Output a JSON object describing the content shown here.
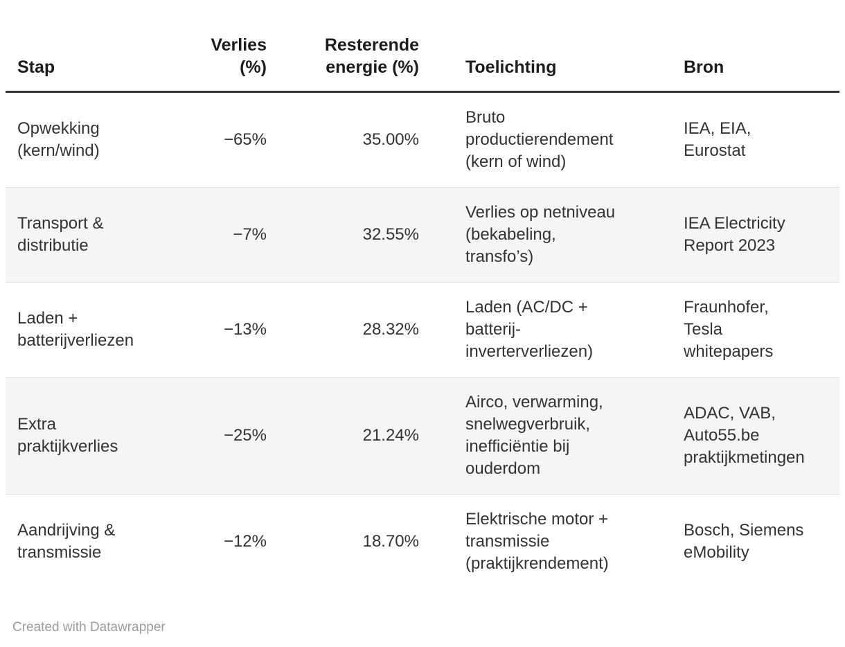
{
  "chart_data": {
    "type": "table",
    "columns": [
      "Stap",
      "Verlies\n(%)",
      "Resterende\nenergie (%)",
      "Toelichting",
      "Bron"
    ],
    "rows": [
      {
        "stap": "Opwekking\n(kern/wind)",
        "verlies": "−65%",
        "resterende": "35.00%",
        "toelichting": "Bruto\nproductierendement\n(kern of wind)",
        "bron": "IEA, EIA,\nEurostat"
      },
      {
        "stap": "Transport &\ndistributie",
        "verlies": "−7%",
        "resterende": "32.55%",
        "toelichting": "Verlies op netniveau\n(bekabeling,\ntransfo’s)",
        "bron": "IEA Electricity\nReport 2023"
      },
      {
        "stap": "Laden +\nbatterijverliezen",
        "verlies": "−13%",
        "resterende": "28.32%",
        "toelichting": "Laden (AC/DC +\nbatterij-\ninverterverliezen)",
        "bron": "Fraunhofer,\nTesla\nwhitepapers"
      },
      {
        "stap": "Extra\npraktijkverlies",
        "verlies": "−25%",
        "resterende": "21.24%",
        "toelichting": "Airco, verwarming,\nsnelwegverbruik,\ninefficiëntie bij\nouderdom",
        "bron": "ADAC, VAB,\nAuto55.be\npraktijkmetingen"
      },
      {
        "stap": "Aandrijving &\ntransmissie",
        "verlies": "−12%",
        "resterende": "18.70%",
        "toelichting": "Elektrische motor +\ntransmissie\n(praktijkrendement)",
        "bron": "Bosch, Siemens\neMobility"
      }
    ],
    "numeric_series": [
      {
        "name": "Verlies (%)",
        "values": [
          -65,
          -7,
          -13,
          -25,
          -12
        ]
      },
      {
        "name": "Resterende energie (%)",
        "values": [
          35.0,
          32.55,
          28.32,
          21.24,
          18.7
        ]
      }
    ],
    "layout_hints": {
      "zebra_striping": true,
      "striped_row_indexes": [
        1,
        3
      ],
      "right_aligned_columns": [
        "Verlies (%)",
        "Resterende energie (%)"
      ]
    }
  },
  "footer": {
    "credit": "Created with Datawrapper"
  },
  "colors": {
    "background": "#ffffff",
    "header_rule": "#333333",
    "row_divider": "#e3e3e3",
    "stripe": "#f5f5f5",
    "body_text": "#333333",
    "header_text": "#1d1d1d",
    "credit_text": "#9c9c9c"
  }
}
